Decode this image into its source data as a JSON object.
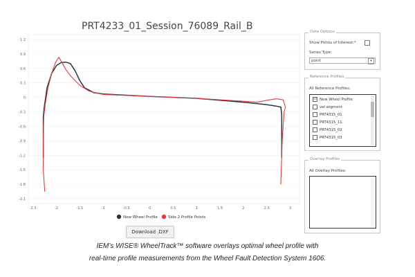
{
  "chart_title": "PRT4233_01_Session_76089_Rail_B",
  "chart_data": {
    "type": "line",
    "title": "PRT4233_01_Session_76089_Rail_B",
    "xlim": [
      -2.6,
      3.2
    ],
    "ylim": [
      -2.2,
      1.3
    ],
    "x_ticks": [
      "-2.5",
      "-2",
      "-1.5",
      "-1",
      "-0.5",
      "0",
      "0.5",
      "1",
      "1.5",
      "2",
      "2.5",
      "3"
    ],
    "y_ticks": [
      "1.2",
      "0.9",
      "0.6",
      "0.3",
      "0",
      "-0.3",
      "-0.6",
      "-0.9",
      "-1.2",
      "-1.5",
      "-1.8",
      "-2.1"
    ],
    "legend": [
      "New Wheel Profile",
      "Side 2 Profile Points"
    ],
    "series": [
      {
        "name": "New Wheel Profile",
        "color": "#2c3341",
        "points": [
          [
            -2.28,
            -1.25
          ],
          [
            -2.28,
            -0.4
          ],
          [
            -2.26,
            -0.2
          ],
          [
            -2.2,
            0.2
          ],
          [
            -2.1,
            0.5
          ],
          [
            -2.0,
            0.66
          ],
          [
            -1.9,
            0.72
          ],
          [
            -1.8,
            0.73
          ],
          [
            -1.7,
            0.7
          ],
          [
            -1.6,
            0.55
          ],
          [
            -1.5,
            0.35
          ],
          [
            -1.4,
            0.2
          ],
          [
            -1.2,
            0.1
          ],
          [
            -1.0,
            0.07
          ],
          [
            0.0,
            0.02
          ],
          [
            1.0,
            -0.02
          ],
          [
            2.0,
            -0.1
          ],
          [
            2.5,
            -0.15
          ],
          [
            2.7,
            -0.18
          ],
          [
            2.8,
            -0.2
          ],
          [
            2.82,
            -0.35
          ],
          [
            2.82,
            -1.25
          ]
        ]
      },
      {
        "name": "Side 2 Profile Points",
        "color": "#e03c3c",
        "points": [
          [
            -2.25,
            -1.95
          ],
          [
            -2.28,
            -1.5
          ],
          [
            -2.28,
            -0.9
          ],
          [
            -2.27,
            -0.4
          ],
          [
            -2.24,
            -0.15
          ],
          [
            -2.18,
            0.2
          ],
          [
            -2.1,
            0.5
          ],
          [
            -2.02,
            0.72
          ],
          [
            -1.95,
            0.83
          ],
          [
            -1.88,
            0.72
          ],
          [
            -1.8,
            0.58
          ],
          [
            -1.7,
            0.45
          ],
          [
            -1.5,
            0.25
          ],
          [
            -1.3,
            0.13
          ],
          [
            -1.0,
            0.06
          ],
          [
            0.0,
            0.02
          ],
          [
            1.0,
            -0.02
          ],
          [
            2.0,
            -0.08
          ],
          [
            2.3,
            -0.1
          ],
          [
            2.5,
            -0.06
          ],
          [
            2.7,
            -0.03
          ],
          [
            2.85,
            -0.05
          ],
          [
            2.9,
            -0.2
          ],
          [
            2.87,
            -0.3
          ],
          [
            2.83,
            -0.9
          ],
          [
            2.8,
            -1.8
          ]
        ]
      }
    ]
  },
  "download_button": "Download .DXF",
  "data_options": {
    "legend": "Data Options",
    "show_poi_label": "Show Points of Interest:*",
    "series_type_label": "Series Type:",
    "series_type_value": "point"
  },
  "reference_profiles": {
    "legend": "Reference Profiles",
    "label": "All Reference Profiles:",
    "items": [
      {
        "label": "New Wheel Profile",
        "checked": "☑"
      },
      {
        "label": "val segment",
        "checked": ""
      },
      {
        "label": "PRT4315_01",
        "checked": ""
      },
      {
        "label": "PRT4315_11",
        "checked": ""
      },
      {
        "label": "PRT4315_02",
        "checked": ""
      },
      {
        "label": "PRT4315_03",
        "checked": ""
      }
    ]
  },
  "overlay_profiles": {
    "legend": "Overlay Profiles",
    "label": "All Overlay Profiles:"
  },
  "caption": {
    "line1": "IEM’s WISE® WheelTrack™ software overlays optimal wheel profile with",
    "line2": "real-time profile measurements from the Wheel Fault Detection System 1606."
  }
}
